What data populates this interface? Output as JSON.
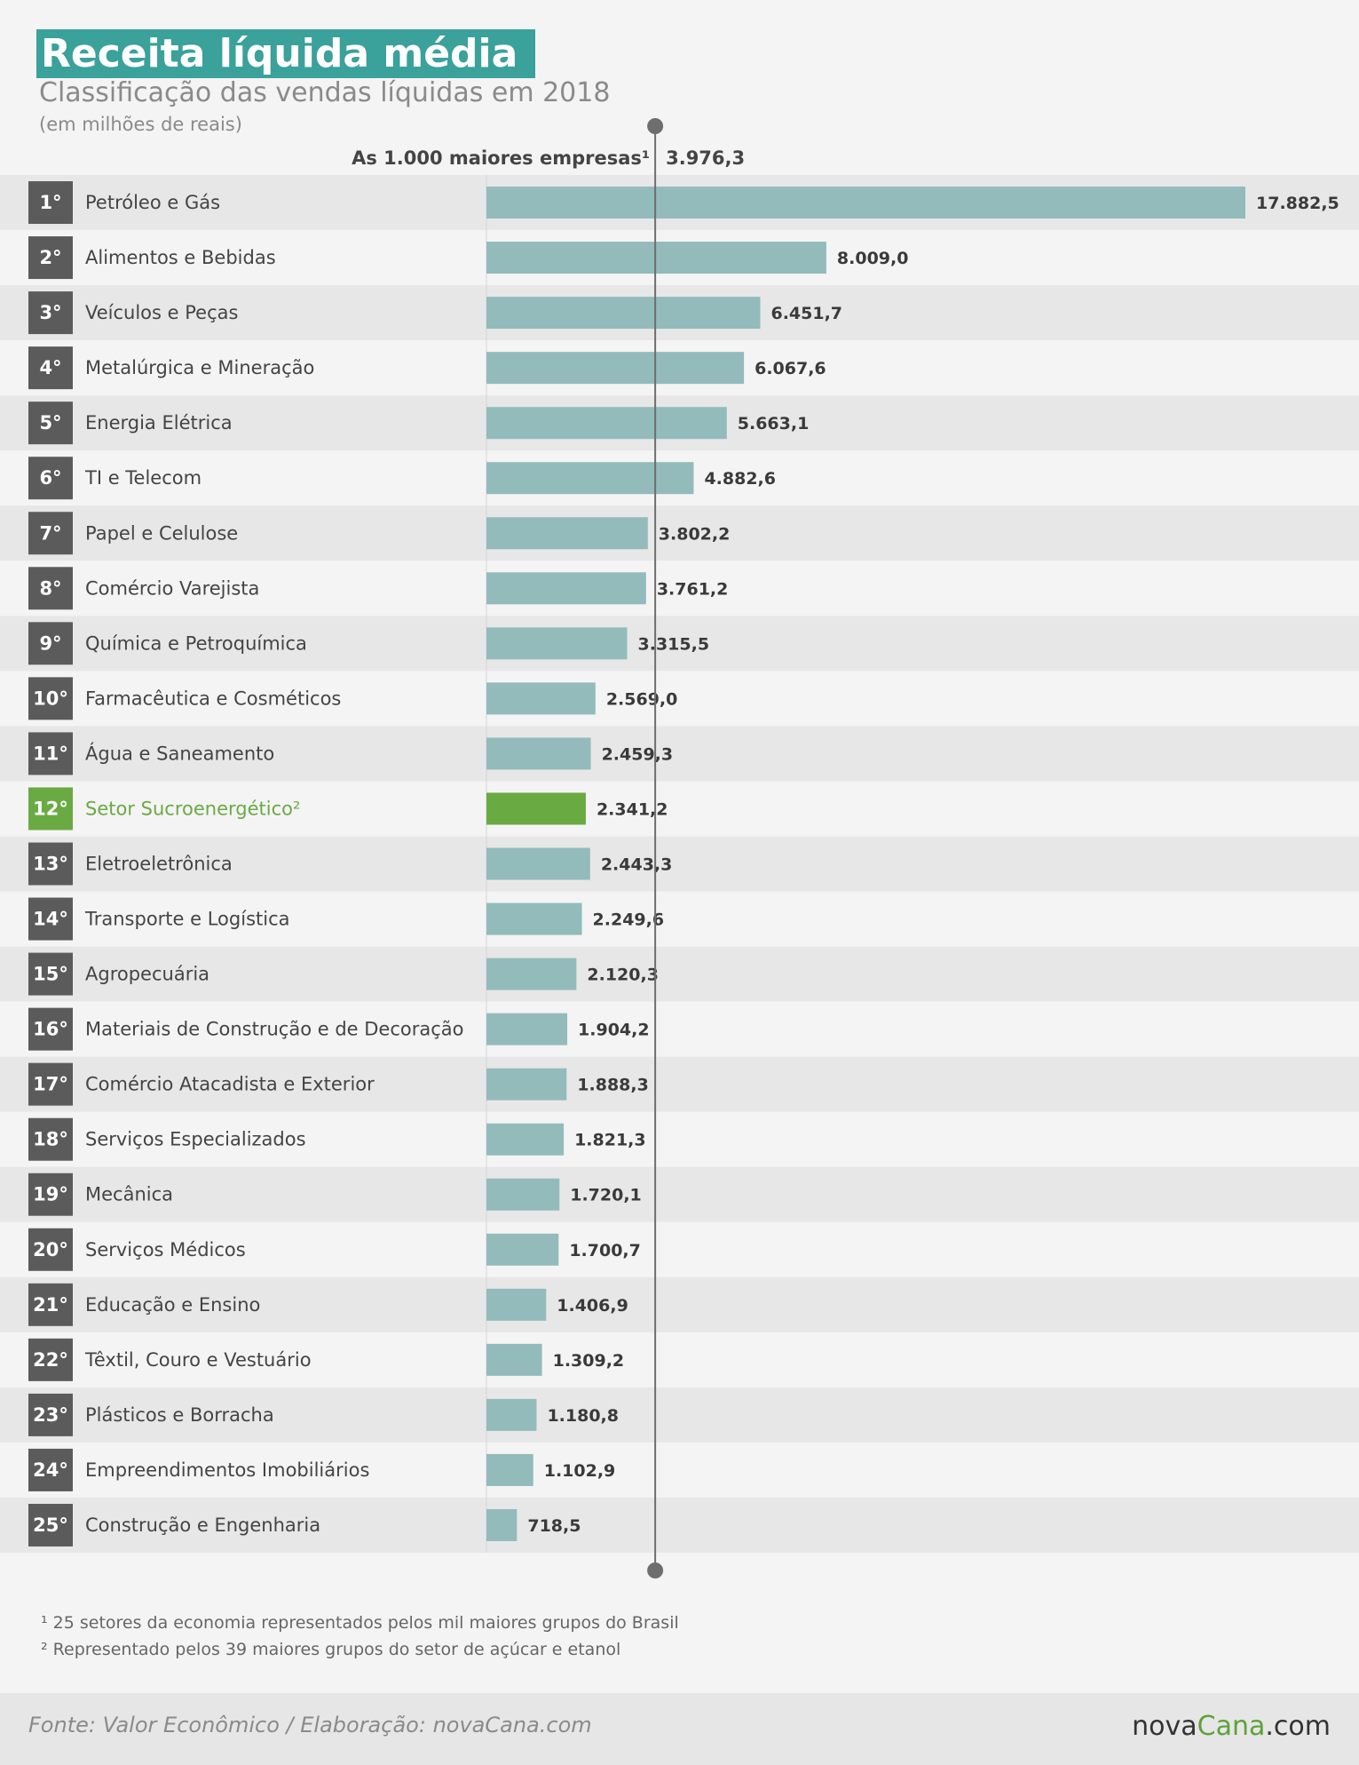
{
  "title": "Receita líquida média",
  "subtitle": "Classificação das vendas líquidas em 2018",
  "unit_note": "(em milhões de reais)",
  "colors": {
    "title_bg": "#3aa19b",
    "bar": "#93bbbb",
    "highlight": "#6aaa43",
    "rank_bg": "#5b5b5b",
    "row_alt": "#e7e7e8"
  },
  "chart_data": {
    "type": "bar",
    "orientation": "horizontal",
    "title": "Receita líquida média",
    "subtitle": "Classificação das vendas líquidas em 2018",
    "unit": "(em milhões de reais)",
    "ranks": [
      "1°",
      "2°",
      "3°",
      "4°",
      "5°",
      "6°",
      "7°",
      "8°",
      "9°",
      "10°",
      "11°",
      "12°",
      "13°",
      "14°",
      "15°",
      "16°",
      "17°",
      "18°",
      "19°",
      "20°",
      "21°",
      "22°",
      "23°",
      "24°",
      "25°"
    ],
    "categories": [
      "Petróleo e Gás",
      "Alimentos e Bebidas",
      "Veículos e Peças",
      "Metalúrgica e Mineração",
      "Energia Elétrica",
      "TI e Telecom",
      "Papel e Celulose",
      "Comércio Varejista",
      "Química e Petroquímica",
      "Farmacêutica e Cosméticos",
      "Água e Saneamento",
      "Setor Sucroenergético²",
      "Eletroeletrônica",
      "Transporte e Logística",
      "Agropecuária",
      "Materiais de Construção e de Decoração",
      "Comércio Atacadista e Exterior",
      "Serviços Especializados",
      "Mecânica",
      "Serviços Médicos",
      "Educação e Ensino",
      "Têxtil, Couro e Vestuário",
      "Plásticos e Borracha",
      "Empreendimentos Imobiliários",
      "Construção e Engenharia"
    ],
    "values": [
      17882.5,
      8009.0,
      6451.7,
      6067.6,
      5663.1,
      4882.6,
      3802.2,
      3761.2,
      3315.5,
      2569.0,
      2459.3,
      2341.2,
      2443.3,
      2249.6,
      2120.3,
      1904.2,
      1888.3,
      1821.3,
      1720.1,
      1700.7,
      1406.9,
      1309.2,
      1180.8,
      1102.9,
      718.5
    ],
    "value_labels": [
      "17.882,5",
      "8.009,0",
      "6.451,7",
      "6.067,6",
      "5.663,1",
      "4.882,6",
      "3.802,2",
      "3.761,2",
      "3.315,5",
      "2.569,0",
      "2.459,3",
      "2.341,2",
      "2.443,3",
      "2.249,6",
      "2.120,3",
      "1.904,2",
      "1.888,3",
      "1.821,3",
      "1.720,1",
      "1.700,7",
      "1.406,9",
      "1.309,2",
      "1.180,8",
      "1.102,9",
      "718,5"
    ],
    "highlight_index": 11,
    "reference_line": {
      "label": "As 1.000 maiores empresas¹",
      "value": 3976.3,
      "value_label": "3.976,3"
    },
    "xlim": [
      0,
      17882.5
    ],
    "grid": false,
    "legend": "none"
  },
  "footnotes": [
    "¹ 25 setores da economia representados pelos mil maiores grupos do Brasil",
    "² Representado pelos 39 maiores grupos do setor de açúcar e etanol"
  ],
  "source": "Fonte: Valor Econômico / Elaboração: novaCana.com",
  "logo": {
    "part1": "nova",
    "part2": "Cana",
    "part3": ".com"
  }
}
